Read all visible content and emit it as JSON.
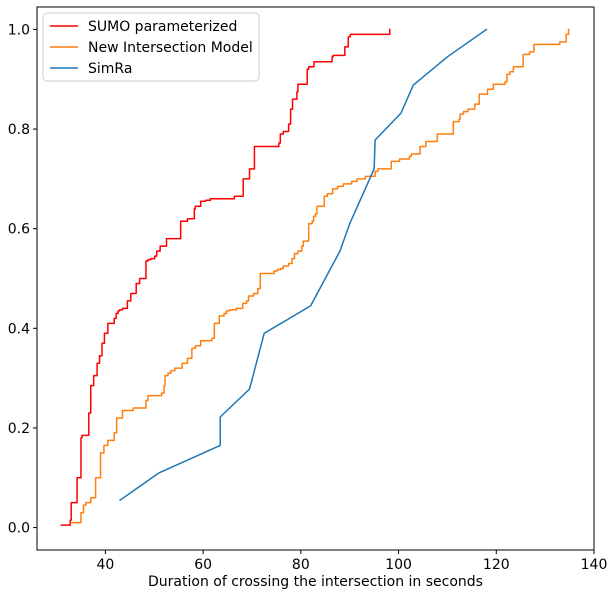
{
  "chart_data": {
    "type": "line",
    "title": "",
    "xlabel": "Duration of crossing the intersection in seconds",
    "ylabel": "",
    "xlim": [
      26.0,
      140.0
    ],
    "ylim": [
      -0.045,
      1.045
    ],
    "xticks": [
      40,
      60,
      80,
      100,
      120,
      140
    ],
    "yticks": [
      0.0,
      0.2,
      0.4,
      0.6,
      0.8,
      1.0
    ],
    "xtick_labels": [
      "40",
      "60",
      "80",
      "100",
      "120",
      "140"
    ],
    "ytick_labels": [
      "0.0",
      "0.2",
      "0.4",
      "0.6",
      "0.8",
      "1.0"
    ],
    "grid": false,
    "legend_position": "top-left",
    "series": [
      {
        "name": "SUMO parameterized",
        "color": "#ff0000",
        "step": true,
        "x": [
          31,
          32.8,
          33,
          34.2,
          35,
          35.2,
          36.6,
          37,
          37.6,
          38.3,
          38.8,
          39.3,
          39.8,
          40.5,
          41.8,
          42.2,
          42.6,
          42.9,
          43.5,
          44.5,
          45.2,
          46.3,
          47,
          48.3,
          48.7,
          49.3,
          50.1,
          50.5,
          51.2,
          52.5,
          55.4,
          56.8,
          58.2,
          58.4,
          59.5,
          60.5,
          61.5,
          66.4,
          68.2,
          69.5,
          70.5,
          75.5,
          75.8,
          76.4,
          77.5,
          77.9,
          78.3,
          79.2,
          79.4,
          81.3,
          81.6,
          82.7,
          86.4,
          86.6,
          89,
          89.7,
          90.1,
          98.2
        ],
        "y": [
          0.005,
          0.015,
          0.05,
          0.1,
          0.18,
          0.185,
          0.23,
          0.285,
          0.305,
          0.33,
          0.345,
          0.37,
          0.39,
          0.41,
          0.42,
          0.43,
          0.435,
          0.437,
          0.44,
          0.455,
          0.47,
          0.49,
          0.5,
          0.535,
          0.538,
          0.54,
          0.545,
          0.555,
          0.565,
          0.58,
          0.615,
          0.62,
          0.64,
          0.645,
          0.655,
          0.657,
          0.66,
          0.665,
          0.7,
          0.72,
          0.765,
          0.772,
          0.79,
          0.795,
          0.81,
          0.84,
          0.86,
          0.875,
          0.89,
          0.92,
          0.925,
          0.935,
          0.945,
          0.948,
          0.965,
          0.985,
          0.99,
          1.0
        ]
      },
      {
        "name": "New Intersection Model",
        "color": "#ff7f0e",
        "step": true,
        "x": [
          33,
          35,
          35.5,
          36,
          37,
          38,
          39,
          39.7,
          40.5,
          41.8,
          42.3,
          43.5,
          45.7,
          48.3,
          48.7,
          51.5,
          52,
          52.2,
          52.8,
          53.4,
          54.2,
          55.7,
          56.8,
          57.7,
          58.4,
          59.5,
          61.8,
          62.3,
          63.3,
          64.3,
          64.8,
          65.4,
          66.8,
          68.1,
          68.9,
          69.3,
          70.3,
          71.2,
          71.7,
          74.5,
          75.2,
          75.9,
          76.4,
          77.5,
          78.2,
          78.7,
          79.4,
          80.2,
          80.5,
          81.6,
          82.3,
          82.6,
          83,
          83.3,
          84.8,
          85.4,
          86.5,
          87.5,
          88.7,
          90.4,
          91.5,
          93.2,
          95.2,
          95.8,
          98.5,
          100.2,
          102.2,
          102.6,
          104.4,
          105.6,
          107.9,
          111.2,
          112.4,
          112.6,
          113.3,
          114.2,
          115.6,
          116.5,
          118.2,
          119.4,
          121.8,
          122.2,
          122.8,
          123.5,
          125.5,
          126.8,
          127.7,
          133,
          134.3,
          134.8
        ],
        "y": [
          0.01,
          0.03,
          0.045,
          0.05,
          0.06,
          0.1,
          0.15,
          0.165,
          0.175,
          0.19,
          0.22,
          0.235,
          0.24,
          0.255,
          0.265,
          0.27,
          0.285,
          0.305,
          0.31,
          0.315,
          0.32,
          0.33,
          0.34,
          0.36,
          0.365,
          0.375,
          0.38,
          0.41,
          0.425,
          0.43,
          0.435,
          0.437,
          0.44,
          0.45,
          0.455,
          0.465,
          0.47,
          0.48,
          0.51,
          0.515,
          0.518,
          0.52,
          0.525,
          0.53,
          0.54,
          0.55,
          0.555,
          0.565,
          0.575,
          0.61,
          0.615,
          0.625,
          0.63,
          0.645,
          0.665,
          0.67,
          0.68,
          0.685,
          0.69,
          0.695,
          0.7,
          0.705,
          0.715,
          0.72,
          0.735,
          0.74,
          0.745,
          0.75,
          0.765,
          0.775,
          0.79,
          0.815,
          0.82,
          0.83,
          0.835,
          0.84,
          0.85,
          0.87,
          0.88,
          0.89,
          0.895,
          0.91,
          0.915,
          0.925,
          0.95,
          0.955,
          0.97,
          0.975,
          0.99,
          1.0
        ]
      },
      {
        "name": "SimRa",
        "color": "#1f77b4",
        "step": false,
        "x": [
          43,
          51,
          63.5,
          63.5,
          69.5,
          72.5,
          82,
          85,
          88,
          90,
          95,
          95.2,
          100.5,
          103,
          110,
          118
        ],
        "y": [
          0.055,
          0.11,
          0.165,
          0.222,
          0.278,
          0.39,
          0.445,
          0.5,
          0.555,
          0.61,
          0.72,
          0.778,
          0.832,
          0.888,
          0.945,
          1.0
        ]
      }
    ]
  }
}
